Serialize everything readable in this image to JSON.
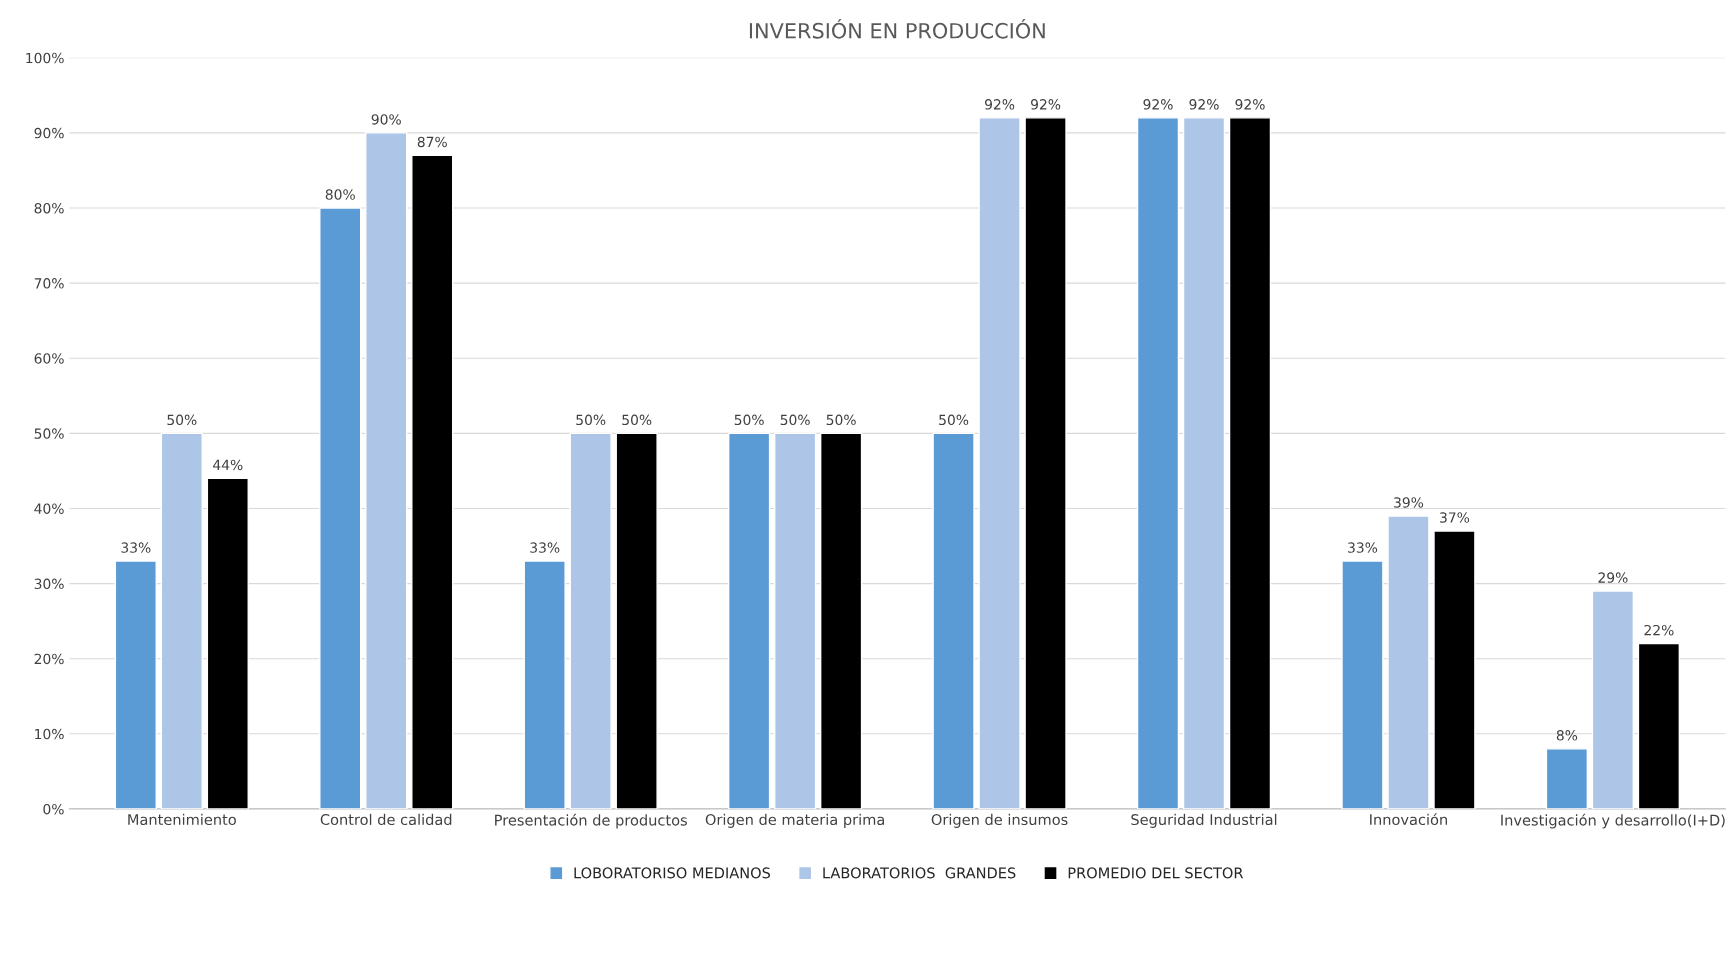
{
  "chart_data": {
    "type": "bar",
    "title": "INVERSIÓN EN PRODUCCIÓN",
    "categories": [
      "Mantenimiento",
      "Control de calidad",
      "Presentación de productos",
      "Origen de materia prima",
      "Origen de insumos",
      "Seguridad Industrial",
      "Innovación",
      "Investigación y desarrollo(I+D)"
    ],
    "series": [
      {
        "name": "LOBORATORISO MEDIANOS",
        "color": "#5b9bd5",
        "values": [
          33,
          80,
          33,
          50,
          50,
          92,
          33,
          8
        ],
        "value_labels": [
          "33%",
          "80%",
          "33%",
          "50%",
          "50%",
          "92%",
          "33%",
          "8%"
        ]
      },
      {
        "name": "LABORATORIOS  GRANDES",
        "color": "#adc5e7",
        "values": [
          50,
          90,
          50,
          50,
          92,
          92,
          39,
          29
        ],
        "value_labels": [
          "50%",
          "90%",
          "50%",
          "50%",
          "92%",
          "92%",
          "39%",
          "29%"
        ]
      },
      {
        "name": "PROMEDIO DEL SECTOR",
        "color": "#000000",
        "values": [
          44,
          87,
          50,
          50,
          92,
          92,
          37,
          22
        ],
        "value_labels": [
          "44%",
          "87%",
          "50%",
          "50%",
          "92%",
          "92%",
          "37%",
          "22%"
        ]
      }
    ],
    "ylim": [
      0,
      100
    ],
    "yticks": [
      {
        "value": 0,
        "label": "0%"
      },
      {
        "value": 10,
        "label": "10%"
      },
      {
        "value": 20,
        "label": "20%"
      },
      {
        "value": 30,
        "label": "30%"
      },
      {
        "value": 40,
        "label": "40%"
      },
      {
        "value": 50,
        "label": "50%"
      },
      {
        "value": 60,
        "label": "60%"
      },
      {
        "value": 70,
        "label": "70%"
      },
      {
        "value": 80,
        "label": "80%"
      },
      {
        "value": 90,
        "label": "90%"
      },
      {
        "value": 100,
        "label": "100%"
      }
    ],
    "grid": "y",
    "legend": "bottom"
  }
}
